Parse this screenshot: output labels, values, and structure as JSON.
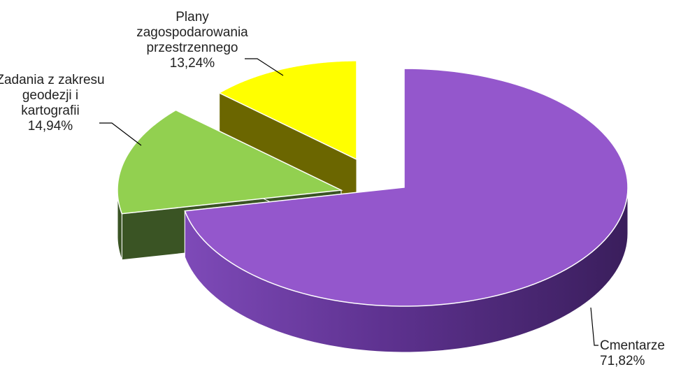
{
  "chart_data": {
    "type": "pie",
    "style": "3d-exploded",
    "slices": [
      {
        "label_lines": [
          "Cmentarze"
        ],
        "value": 71.82,
        "value_text": "71,82%",
        "color": "#9457CC",
        "side_color": "#5A2F85"
      },
      {
        "label_lines": [
          "Zadania z zakresu",
          "geodezji i",
          "kartografii"
        ],
        "value": 14.94,
        "value_text": "14,94%",
        "color": "#92D050",
        "side_color": "#3A5424"
      },
      {
        "label_lines": [
          "Plany",
          "zagospodarowania",
          "przestrzennego"
        ],
        "value": 13.24,
        "value_text": "13,24%",
        "color": "#FFFF00",
        "side_color": "#6B6600"
      }
    ]
  }
}
